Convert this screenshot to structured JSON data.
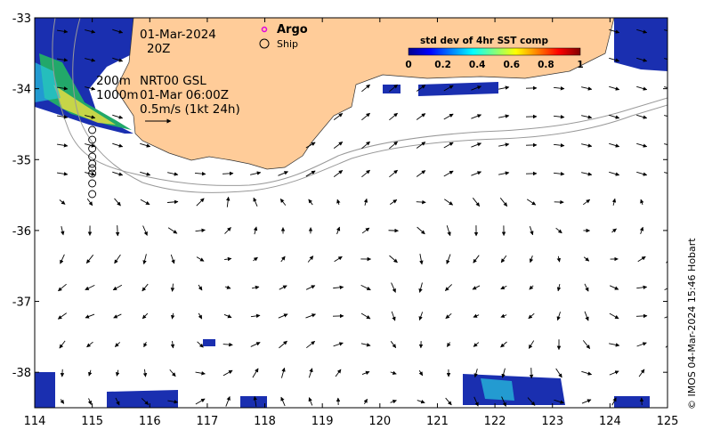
{
  "map": {
    "date": "01-Mar-2024",
    "time": "20Z",
    "depth_200m": "200m",
    "depth_1000m": "1000m",
    "product": "NRT00 GSL",
    "product_time": "01-Mar 06:00Z",
    "scale_arrow": "0.5m/s (1kt 24h)",
    "credit": "© IMOS 04-Mar-2024 15:46 Hobart",
    "extent": {
      "lon": [
        114,
        125
      ],
      "lat": [
        -38.5,
        -33
      ]
    },
    "x_ticks": [
      "114",
      "115",
      "116",
      "117",
      "118",
      "119",
      "120",
      "121",
      "122",
      "123",
      "124",
      "125"
    ],
    "y_ticks": [
      "-33",
      "-34",
      "-35",
      "-36",
      "-37",
      "-38"
    ]
  },
  "legend": {
    "argo": "Argo",
    "ship": "Ship",
    "argo_color": "#e000e0"
  },
  "colorbar": {
    "title": "std dev of 4hr SST comp",
    "ticks": [
      "0",
      "0.2",
      "0.4",
      "0.6",
      "0.8",
      "1"
    ]
  },
  "colors": {
    "land": "#ffcc99",
    "sst_low": "#00008b",
    "sst_mid": "#00c0e0",
    "sst_high": "#e8e800"
  }
}
